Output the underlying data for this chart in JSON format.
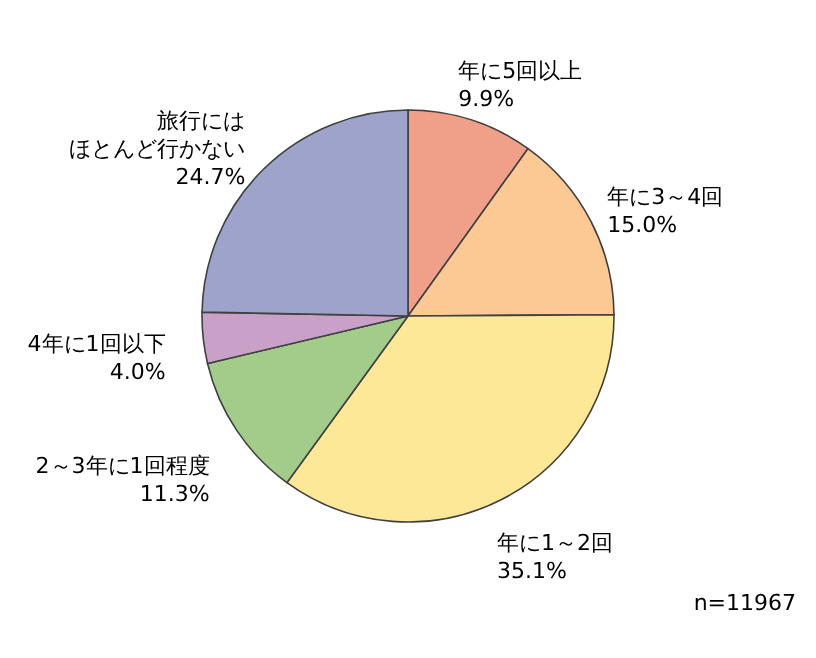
{
  "chart_data": {
    "type": "pie",
    "categories": [
      "年に5回以上",
      "年に3～4回",
      "年に1～2回",
      "2～3年に1回程度",
      "4年に1回以下",
      "旅行にはほとんど行かない"
    ],
    "values": [
      9.9,
      15.0,
      35.1,
      11.3,
      4.0,
      24.7
    ],
    "value_labels": [
      "9.9%",
      "15.0%",
      "35.1%",
      "11.3%",
      "4.0%",
      "24.7%"
    ],
    "colors": [
      "#f0a088",
      "#fcc994",
      "#fde898",
      "#a3cc8a",
      "#c8a0c8",
      "#9ea3cb"
    ],
    "annotations": [
      "n=11967"
    ]
  }
}
